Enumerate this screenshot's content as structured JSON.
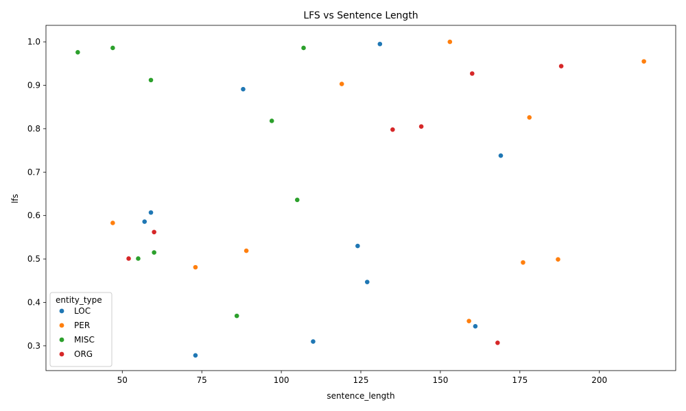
{
  "chart_data": {
    "type": "scatter",
    "title": "LFS vs Sentence Length",
    "xlabel": "sentence_length",
    "ylabel": "lfs",
    "xlim": [
      26,
      224
    ],
    "ylim": [
      0.243,
      1.038
    ],
    "xticks": [
      50,
      75,
      100,
      125,
      150,
      175,
      200
    ],
    "yticks": [
      0.3,
      0.4,
      0.5,
      0.6,
      0.7,
      0.8,
      0.9,
      1.0
    ],
    "grid": false,
    "legend": {
      "title": "entity_type",
      "placement": "lower-left"
    },
    "series": [
      {
        "name": "LOC",
        "color": "#1f77b4",
        "points": [
          [
            131,
            0.995
          ],
          [
            88,
            0.891
          ],
          [
            169,
            0.738
          ],
          [
            59,
            0.607
          ],
          [
            57,
            0.586
          ],
          [
            124,
            0.53
          ],
          [
            127,
            0.447
          ],
          [
            161,
            0.345
          ],
          [
            110,
            0.31
          ],
          [
            73,
            0.278
          ]
        ]
      },
      {
        "name": "PER",
        "color": "#ff7f0e",
        "points": [
          [
            153,
            1.0
          ],
          [
            214,
            0.955
          ],
          [
            119,
            0.903
          ],
          [
            178,
            0.826
          ],
          [
            47,
            0.583
          ],
          [
            89,
            0.519
          ],
          [
            187,
            0.499
          ],
          [
            176,
            0.492
          ],
          [
            73,
            0.481
          ],
          [
            159,
            0.357
          ]
        ]
      },
      {
        "name": "MISC",
        "color": "#2ca02c",
        "points": [
          [
            36,
            0.976
          ],
          [
            47,
            0.986
          ],
          [
            107,
            0.986
          ],
          [
            59,
            0.912
          ],
          [
            97,
            0.818
          ],
          [
            105,
            0.636
          ],
          [
            60,
            0.515
          ],
          [
            55,
            0.501
          ],
          [
            86,
            0.369
          ]
        ]
      },
      {
        "name": "ORG",
        "color": "#d62728",
        "points": [
          [
            188,
            0.944
          ],
          [
            160,
            0.927
          ],
          [
            144,
            0.805
          ],
          [
            135,
            0.798
          ],
          [
            60,
            0.562
          ],
          [
            52,
            0.501
          ],
          [
            168,
            0.307
          ]
        ]
      }
    ]
  }
}
